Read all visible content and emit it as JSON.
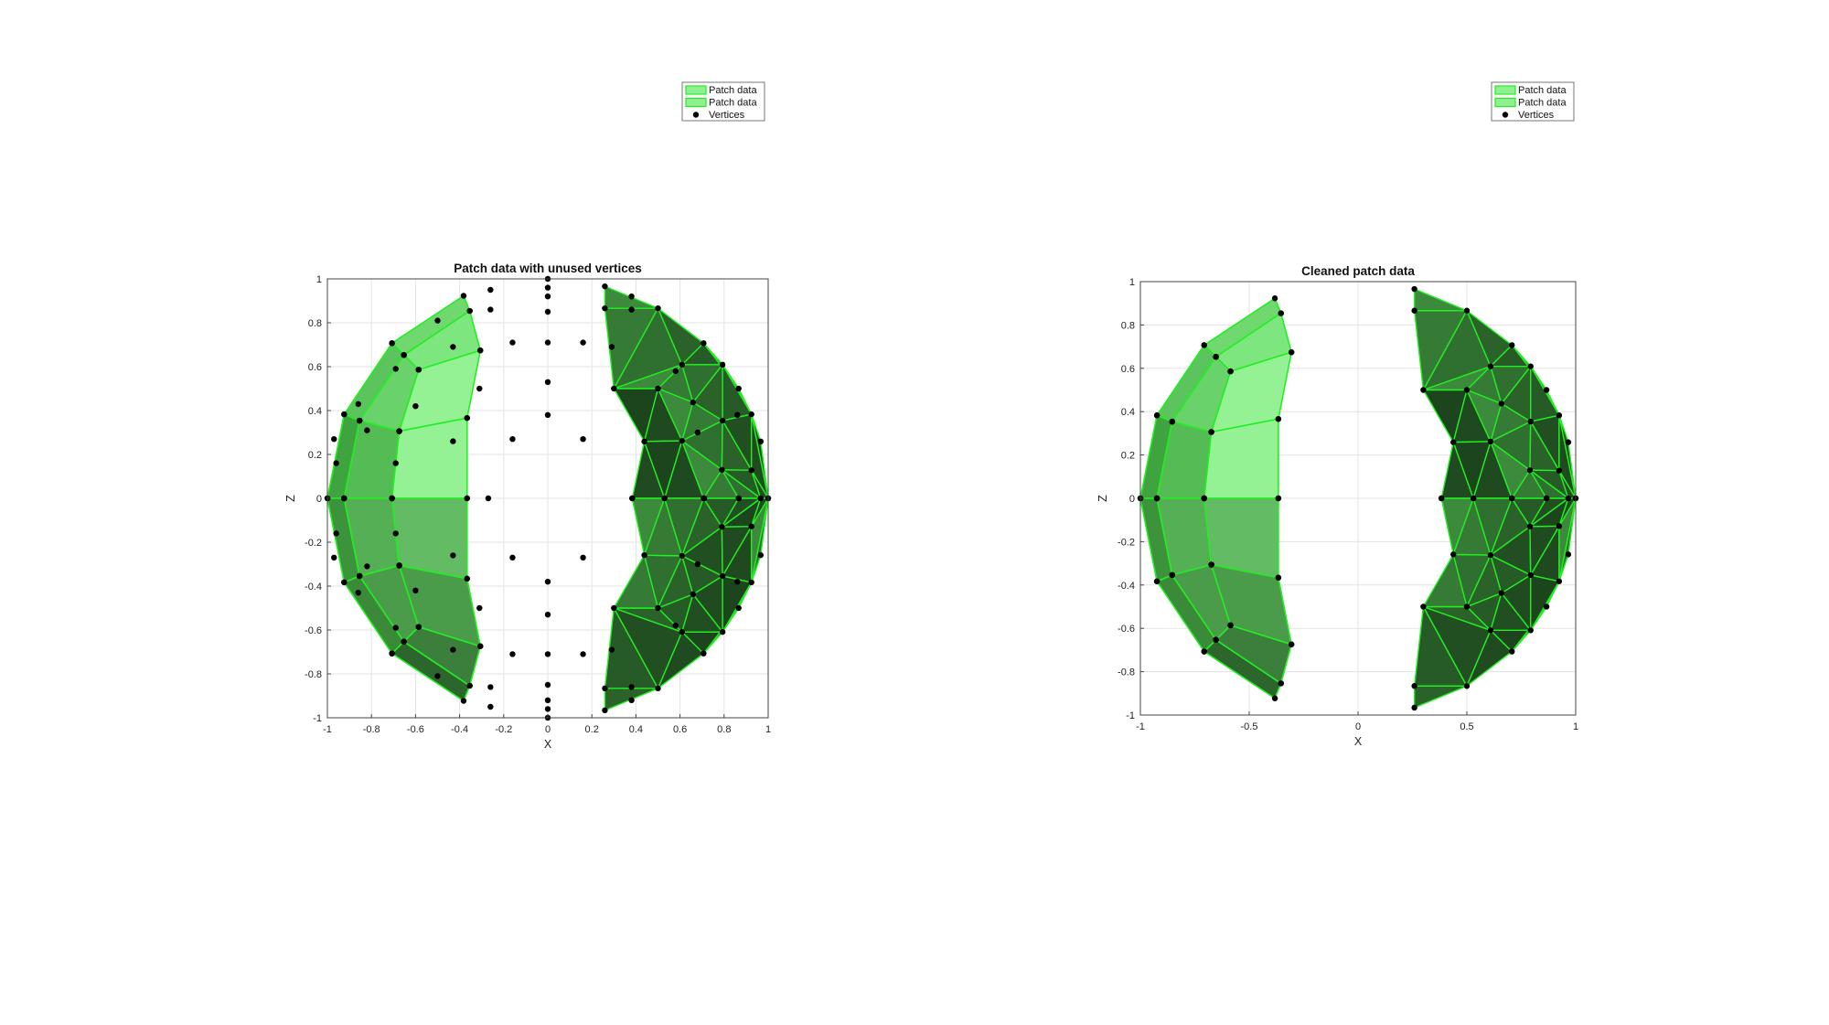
{
  "chart_data": [
    {
      "type": "scatter",
      "plot": "3d-patch-view-xz",
      "title": "Patch data with unused vertices",
      "xlabel": "X",
      "ylabel": "Z",
      "xlim": [
        -1,
        1
      ],
      "ylim": [
        -1,
        1
      ],
      "xticks": [
        -1,
        -0.8,
        -0.6,
        -0.4,
        -0.2,
        0,
        0.2,
        0.4,
        0.6,
        0.8,
        1
      ],
      "xticklabels": [
        "-1",
        "-0.8",
        "-0.6",
        "-0.4",
        "-0.2",
        "0",
        "0.2",
        "0.4",
        "0.6",
        "0.8",
        "1"
      ],
      "yticks": [
        -1,
        -0.8,
        -0.6,
        -0.4,
        -0.2,
        0,
        0.2,
        0.4,
        0.6,
        0.8,
        1
      ],
      "yticklabels": [
        "-1",
        "-0.8",
        "-0.6",
        "-0.4",
        "-0.2",
        "0",
        "0.2",
        "0.4",
        "0.6",
        "0.8",
        "1"
      ],
      "grid": true,
      "legend_position": "northeast-outside",
      "legend": [
        {
          "label": "Patch data",
          "type": "patch"
        },
        {
          "label": "Patch data",
          "type": "patch"
        },
        {
          "label": "Vertices",
          "type": "marker"
        }
      ],
      "show_unused": true
    },
    {
      "type": "scatter",
      "plot": "3d-patch-view-xz",
      "title": "Cleaned patch data",
      "xlabel": "X",
      "ylabel": "Z",
      "xlim": [
        -1,
        1
      ],
      "ylim": [
        -1,
        1
      ],
      "xticks": [
        -1,
        -0.5,
        0,
        0.5,
        1
      ],
      "xticklabels": [
        "-1",
        "-0.5",
        "0",
        "0.5",
        "1"
      ],
      "yticks": [
        -1,
        -0.8,
        -0.6,
        -0.4,
        -0.2,
        0,
        0.2,
        0.4,
        0.6,
        0.8,
        1
      ],
      "yticklabels": [
        "-1",
        "-0.8",
        "-0.6",
        "-0.4",
        "-0.2",
        "0",
        "0.2",
        "0.4",
        "0.6",
        "0.8",
        "1"
      ],
      "grid": true,
      "legend_position": "northeast-outside",
      "legend": [
        {
          "label": "Patch data",
          "type": "patch"
        },
        {
          "label": "Patch data",
          "type": "patch"
        },
        {
          "label": "Vertices",
          "type": "marker"
        }
      ],
      "show_unused": false
    }
  ],
  "mesh": {
    "quad_rows": [
      [
        [
          -0.382,
          0.923
        ],
        [
          -0.354,
          0.854
        ],
        [
          -0.653,
          0.653
        ],
        [
          -0.707,
          0.707
        ]
      ],
      [
        [
          -0.354,
          0.854
        ],
        [
          -0.306,
          0.674
        ],
        [
          -0.586,
          0.586
        ],
        [
          -0.653,
          0.653
        ]
      ],
      [
        [
          -0.707,
          0.707
        ],
        [
          -0.653,
          0.653
        ],
        [
          -0.854,
          0.354
        ],
        [
          -0.924,
          0.383
        ]
      ],
      [
        [
          -0.653,
          0.653
        ],
        [
          -0.586,
          0.586
        ],
        [
          -0.674,
          0.306
        ],
        [
          -0.854,
          0.354
        ]
      ],
      [
        [
          -0.306,
          0.674
        ],
        [
          -0.366,
          0.366
        ],
        [
          -0.674,
          0.306
        ],
        [
          -0.586,
          0.586
        ]
      ],
      [
        [
          -0.924,
          0.383
        ],
        [
          -0.854,
          0.354
        ],
        [
          -0.924,
          0.0
        ],
        [
          -1.0,
          0.0
        ]
      ],
      [
        [
          -0.854,
          0.354
        ],
        [
          -0.674,
          0.306
        ],
        [
          -0.707,
          0.0
        ],
        [
          -0.924,
          0.0
        ]
      ],
      [
        [
          -0.674,
          0.306
        ],
        [
          -0.366,
          0.366
        ],
        [
          -0.366,
          0.0
        ],
        [
          -0.707,
          0.0
        ]
      ]
    ],
    "right_rows": [
      [
        0.259,
        0.366,
        0.5,
        0.609,
        0.707,
        0.793,
        0.866,
        0.924,
        0.966,
        1.0
      ],
      [
        0.966,
        0.924,
        0.866,
        0.793,
        0.707,
        0.609,
        0.5,
        0.366,
        0.259
      ]
    ],
    "right_vertices": [
      [
        0.259,
        0.966
      ],
      [
        0.259,
        0.866
      ],
      [
        0.5,
        0.866
      ],
      [
        0.5,
        0.5
      ],
      [
        0.707,
        0.707
      ],
      [
        0.866,
        0.5
      ],
      [
        0.966,
        0.259
      ],
      [
        1.0,
        0.0
      ],
      [
        0.3,
        0.5
      ],
      [
        0.609,
        0.609
      ],
      [
        0.793,
        0.609
      ],
      [
        0.924,
        0.383
      ],
      [
        0.438,
        0.259
      ],
      [
        0.659,
        0.437
      ],
      [
        0.793,
        0.354
      ],
      [
        0.924,
        0.128
      ],
      [
        0.383,
        0.0
      ],
      [
        0.609,
        0.262
      ],
      [
        0.79,
        0.13
      ],
      [
        0.966,
        0.0
      ],
      [
        0.53,
        0.0
      ],
      [
        0.707,
        0.0
      ],
      [
        0.866,
        0.0
      ]
    ],
    "unused_vertices": [
      [
        0.0,
        1.0
      ],
      [
        0.0,
        0.96
      ],
      [
        0.0,
        0.92
      ],
      [
        0.0,
        0.85
      ],
      [
        0.0,
        0.71
      ],
      [
        0.0,
        0.53
      ],
      [
        0.0,
        0.38
      ],
      [
        0.0,
        -1.0
      ],
      [
        0.0,
        -0.96
      ],
      [
        0.0,
        -0.92
      ],
      [
        0.0,
        -0.85
      ],
      [
        0.0,
        -0.71
      ],
      [
        0.0,
        -0.53
      ],
      [
        0.0,
        -0.38
      ],
      [
        -0.26,
        0.95
      ],
      [
        -0.26,
        0.86
      ],
      [
        -0.16,
        0.71
      ],
      [
        -0.31,
        0.5
      ],
      [
        -0.16,
        0.27
      ],
      [
        -0.27,
        0.0
      ],
      [
        -0.26,
        -0.95
      ],
      [
        -0.26,
        -0.86
      ],
      [
        -0.16,
        -0.71
      ],
      [
        -0.31,
        -0.5
      ],
      [
        -0.16,
        -0.27
      ],
      [
        0.16,
        0.71
      ],
      [
        0.16,
        0.27
      ],
      [
        0.16,
        -0.71
      ],
      [
        0.16,
        -0.27
      ],
      [
        -0.43,
        0.69
      ],
      [
        -0.43,
        0.26
      ],
      [
        -0.43,
        -0.26
      ],
      [
        -0.43,
        -0.69
      ],
      [
        -0.6,
        0.42
      ],
      [
        -0.6,
        -0.42
      ],
      [
        -0.69,
        0.16
      ],
      [
        -0.69,
        -0.16
      ],
      [
        -0.82,
        0.31
      ],
      [
        -0.82,
        -0.31
      ],
      [
        -0.86,
        0.43
      ],
      [
        -0.86,
        -0.43
      ],
      [
        -0.96,
        0.16
      ],
      [
        -0.96,
        -0.16
      ],
      [
        -0.97,
        0.27
      ],
      [
        -0.97,
        -0.27
      ],
      [
        -0.5,
        0.81
      ],
      [
        -0.5,
        -0.81
      ],
      [
        -0.69,
        0.59
      ],
      [
        -0.69,
        -0.59
      ],
      [
        0.38,
        0.92
      ],
      [
        0.38,
        -0.92
      ],
      [
        0.58,
        0.58
      ],
      [
        0.58,
        -0.58
      ],
      [
        0.68,
        0.3
      ],
      [
        0.68,
        -0.3
      ],
      [
        0.86,
        0.38
      ],
      [
        0.86,
        -0.38
      ],
      [
        0.71,
        0.0
      ],
      [
        0.29,
        0.69
      ],
      [
        0.29,
        -0.69
      ],
      [
        0.38,
        0.86
      ],
      [
        0.38,
        -0.86
      ]
    ]
  },
  "colors": {
    "edge": "#22ee22",
    "light_fill": "#8ff08f",
    "mid_fill": "#4fb84f",
    "dark_fill": "#2a6e2a",
    "darkest_fill": "#1f4f1f",
    "marker": "#000000",
    "grid": "#e3e3e3",
    "axis": "#444444"
  }
}
